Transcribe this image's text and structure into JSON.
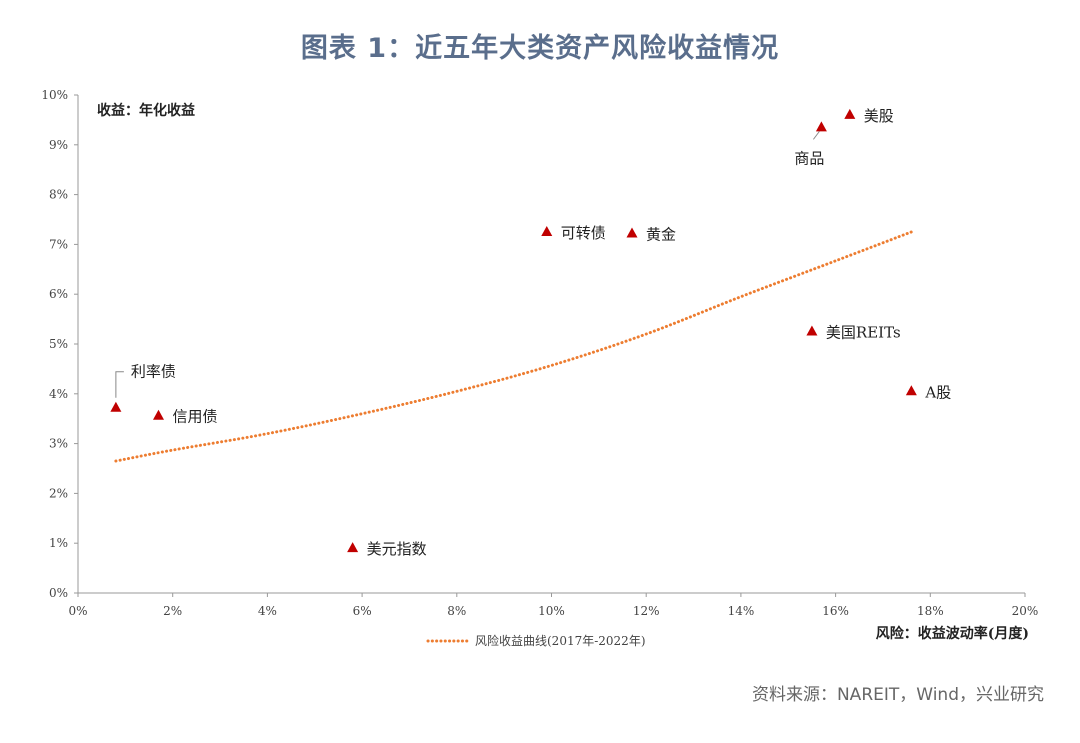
{
  "header": {
    "title": "图表 1：近五年大类资产风险收益情况"
  },
  "footer": {
    "source": "资料来源：NAREIT，Wind，兴业研究"
  },
  "chart_data": {
    "type": "scatter",
    "title": "图表 1：近五年大类资产风险收益情况",
    "ylabel": "收益：年化收益",
    "xlabel": "风险：收益波动率(月度)",
    "xlim": [
      0,
      20
    ],
    "ylim": [
      0,
      10
    ],
    "x_ticks": [
      "0%",
      "2%",
      "4%",
      "6%",
      "8%",
      "10%",
      "12%",
      "14%",
      "16%",
      "18%",
      "20%"
    ],
    "y_ticks": [
      "0%",
      "1%",
      "2%",
      "3%",
      "4%",
      "5%",
      "6%",
      "7%",
      "8%",
      "9%",
      "10%"
    ],
    "grid": false,
    "legend_position": "bottom-left",
    "marker_color": "#c00000",
    "curve_color": "#ed7d31",
    "points": [
      {
        "label": "美股",
        "x": 16.3,
        "y": 9.6
      },
      {
        "label": "商品",
        "x": 15.7,
        "y": 9.35
      },
      {
        "label": "可转债",
        "x": 9.9,
        "y": 7.25
      },
      {
        "label": "黄金",
        "x": 11.7,
        "y": 7.22
      },
      {
        "label": "美国REITs",
        "x": 15.5,
        "y": 5.25
      },
      {
        "label": "A股",
        "x": 17.6,
        "y": 4.05
      },
      {
        "label": "利率债",
        "x": 0.8,
        "y": 3.72
      },
      {
        "label": "信用债",
        "x": 1.7,
        "y": 3.56
      },
      {
        "label": "美元指数",
        "x": 5.8,
        "y": 0.9
      }
    ],
    "series": [
      {
        "name": "风险收益曲线(2017年-2022年)",
        "type": "line",
        "style": "dotted",
        "x": [
          0.8,
          2,
          4,
          6,
          8,
          10,
          12,
          14,
          16,
          17.6
        ],
        "y": [
          2.65,
          2.87,
          3.2,
          3.6,
          4.05,
          4.57,
          5.2,
          5.95,
          6.67,
          7.25
        ]
      }
    ]
  }
}
